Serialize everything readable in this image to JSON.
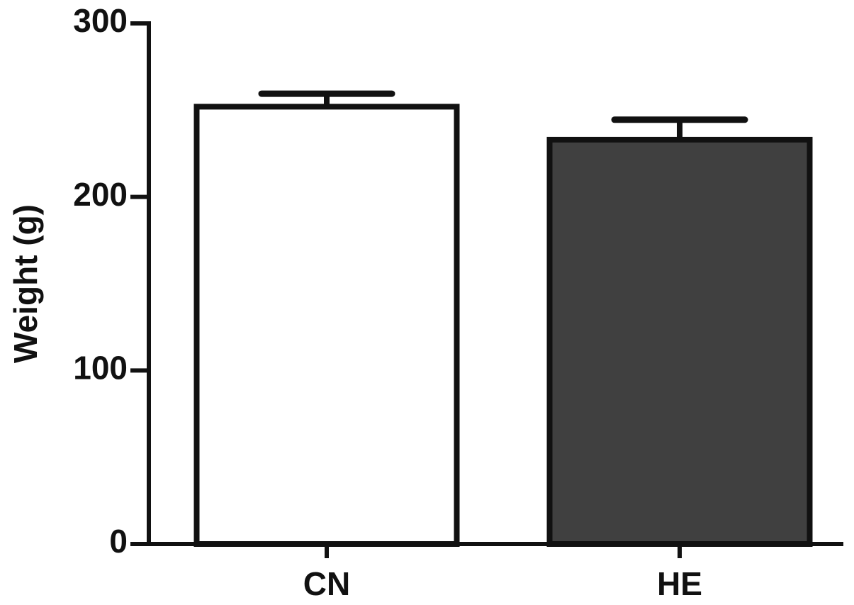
{
  "chart_data": {
    "type": "bar",
    "ylabel": "Weight (g)",
    "categories": [
      "CN",
      "HE"
    ],
    "values": [
      252,
      233
    ],
    "errors": [
      7.5,
      11.5
    ],
    "colors": [
      "#ffffff",
      "#404040"
    ],
    "ylim": [
      0,
      300
    ],
    "yticks": [
      0,
      100,
      200,
      300
    ]
  }
}
